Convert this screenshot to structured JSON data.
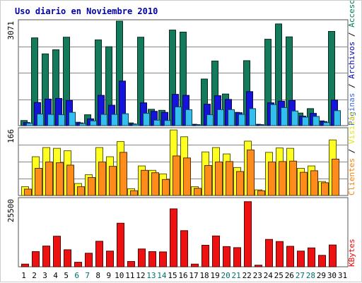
{
  "chart_data": {
    "type": "bar",
    "title": "Uso diario en Noviembre 2010",
    "categories": [
      "1",
      "2",
      "3",
      "4",
      "5",
      "6",
      "7",
      "8",
      "9",
      "10",
      "11",
      "12",
      "13",
      "14",
      "15",
      "16",
      "17",
      "18",
      "19",
      "20",
      "21",
      "22",
      "23",
      "24",
      "25",
      "26",
      "27",
      "28",
      "29",
      "30",
      "31"
    ],
    "weekend_days": [
      "6",
      "7",
      "13",
      "14",
      "20",
      "21",
      "27",
      "28"
    ],
    "colors": {
      "title": "#0000aa",
      "axis_label": "#000000",
      "weekday_tick": "#000000",
      "weekend_tick": "#006e6e",
      "background": "#ffffff",
      "border": "#cccccc",
      "gridline": "#888888",
      "paginas": "#0000cc",
      "archivos": "#1e1ee6",
      "accesos": "#0e7a5a",
      "clientes": "#ff7700",
      "visitas": "#ffff00",
      "kbytes": "#ff0000"
    },
    "panels": [
      {
        "id": "hits",
        "ymax_label": "3071",
        "ymax": 3071,
        "grid": true,
        "series": [
          {
            "name": "Accesos",
            "color": "#137a5b",
            "values": [
              150,
              2580,
              2110,
              2230,
              2600,
              100,
              320,
              2520,
              2320,
              3071,
              80,
              2600,
              480,
              450,
              2810,
              2750,
              40,
              1370,
              1900,
              930,
              390,
              1910,
              40,
              2540,
              2990,
              2610,
              370,
              500,
              140,
              2770,
              0
            ]
          },
          {
            "name": "Archivos",
            "color": "#1414dd",
            "values": [
              90,
              680,
              780,
              800,
              740,
              80,
              200,
              890,
              600,
              1310,
              50,
              670,
              420,
              390,
              920,
              890,
              30,
              630,
              880,
              770,
              380,
              1000,
              30,
              670,
              720,
              740,
              280,
              360,
              120,
              750,
              0
            ]
          },
          {
            "name": "Páginas",
            "color": "#33c0f0",
            "values": [
              70,
              340,
              330,
              320,
              390,
              60,
              140,
              330,
              330,
              350,
              40,
              360,
              160,
              150,
              550,
              470,
              20,
              320,
              470,
              470,
              330,
              500,
              20,
              620,
              530,
              430,
              250,
              270,
              90,
              440,
              0
            ]
          }
        ]
      },
      {
        "id": "visits",
        "ymax_label": "166",
        "ymax": 166,
        "grid": true,
        "series": [
          {
            "name": "Visitas",
            "color": "#ffff22",
            "values": [
              22,
              97,
              120,
              118,
              112,
              30,
              52,
              120,
              97,
              135,
              17,
              74,
              63,
              54,
              164,
              147,
              22,
              109,
              120,
              104,
              70,
              136,
              14,
              108,
              119,
              118,
              68,
              74,
              35,
              139,
              0
            ]
          },
          {
            "name": "Clientes",
            "color": "#ff8c1a",
            "values": [
              16,
              68,
              84,
              82,
              76,
              22,
              45,
              84,
              73,
              108,
              12,
              63,
              57,
              40,
              99,
              94,
              18,
              75,
              84,
              85,
              60,
              114,
              12,
              84,
              85,
              86,
              58,
              62,
              32,
              91,
              0
            ]
          }
        ]
      },
      {
        "id": "kbytes",
        "ymax_label": "25500",
        "ymax": 25500,
        "grid": false,
        "series": [
          {
            "name": "KBytes",
            "color": "#ee1111",
            "values": [
              1000,
              5700,
              7800,
              11500,
              6400,
              1700,
              5100,
              9600,
              5900,
              16400,
              2000,
              6700,
              5700,
              5600,
              21800,
              13600,
              1000,
              8100,
              11600,
              7600,
              7200,
              24500,
              600,
              10300,
              9500,
              7700,
              5900,
              7100,
              4300,
              8200,
              0
            ]
          }
        ]
      }
    ],
    "side_labels": {
      "hits": [
        {
          "text": "Páginas",
          "color": "#3366ff"
        },
        {
          "text": " / ",
          "color": "#000000"
        },
        {
          "text": "Archivos",
          "color": "#0000cc"
        },
        {
          "text": " / ",
          "color": "#000000"
        },
        {
          "text": "Accesos",
          "color": "#008060"
        }
      ],
      "visits": [
        {
          "text": "Clientes",
          "color": "#ff8000"
        },
        {
          "text": " / ",
          "color": "#000000"
        },
        {
          "text": "Visitas",
          "color": "#e6e600"
        }
      ],
      "kbytes": [
        {
          "text": "KBytes",
          "color": "#ff0000"
        }
      ]
    }
  }
}
